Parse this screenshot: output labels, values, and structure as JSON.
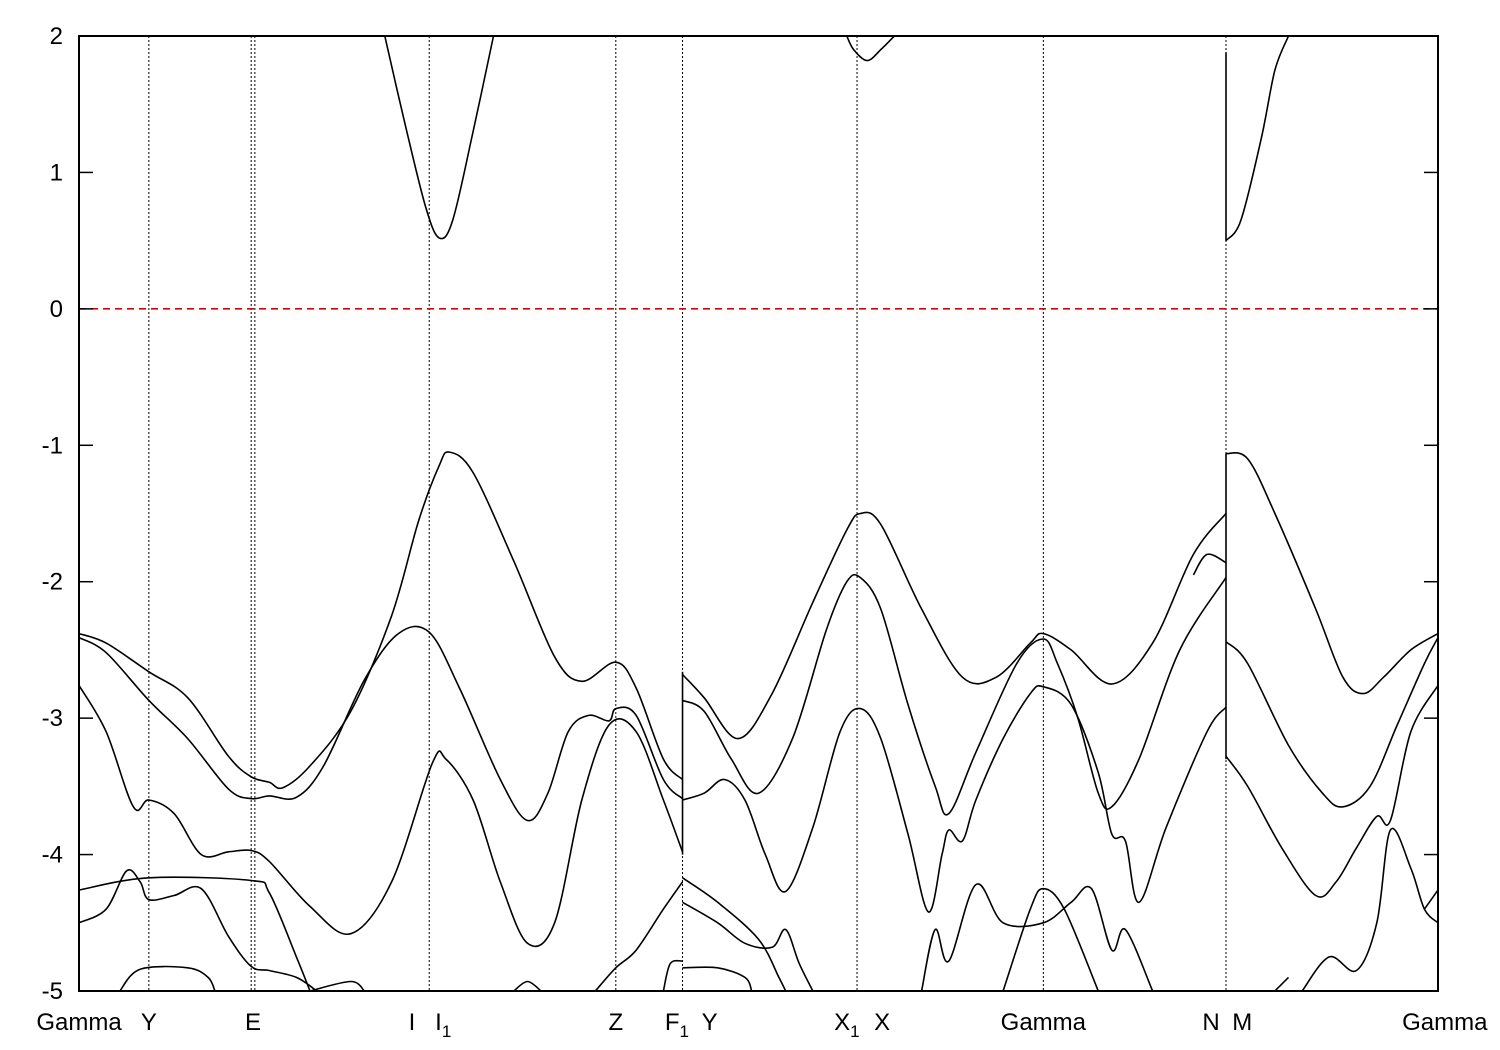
{
  "chart_data": {
    "type": "line",
    "title": "",
    "xlabel": "",
    "ylabel": "",
    "xlim": [
      0,
      1
    ],
    "ylim": [
      -5,
      2
    ],
    "yticks": [
      -5,
      -4,
      -3,
      -2,
      -1,
      0,
      1,
      2
    ],
    "grid": false,
    "legend": "none",
    "colors": {
      "bands": "#000000",
      "fermi_level": "#e00000"
    },
    "fermi_level": 0,
    "high_symmetry_lines": [
      0.0514,
      0.1267,
      0.1294,
      0.2577,
      0.395,
      0.4441,
      0.5725,
      0.7096,
      0.844
    ],
    "x_tick_labels": [
      {
        "x": 0.0,
        "main": "Gamma",
        "sub": ""
      },
      {
        "x": 0.0514,
        "main": "Y",
        "sub": ""
      },
      {
        "x": 0.128,
        "main": "E",
        "sub": ""
      },
      {
        "x": 0.245,
        "main": "I",
        "sub": ""
      },
      {
        "x": 0.268,
        "main": "I",
        "sub": "1"
      },
      {
        "x": 0.395,
        "main": "Z",
        "sub": ""
      },
      {
        "x": 0.44,
        "main": "F",
        "sub": "1"
      },
      {
        "x": 0.464,
        "main": "Y",
        "sub": ""
      },
      {
        "x": 0.565,
        "main": "X",
        "sub": "1"
      },
      {
        "x": 0.591,
        "main": "X",
        "sub": ""
      },
      {
        "x": 0.7096,
        "main": "Gamma",
        "sub": ""
      },
      {
        "x": 0.833,
        "main": "N",
        "sub": ""
      },
      {
        "x": 0.856,
        "main": "M",
        "sub": ""
      },
      {
        "x": 1.005,
        "main": "Gamma",
        "sub": ""
      }
    ],
    "series": [
      {
        "points": [
          [
            0,
            -2.38
          ],
          [
            0.02,
            -2.45
          ],
          [
            0.0514,
            -2.66
          ],
          [
            0.08,
            -2.85
          ],
          [
            0.11,
            -3.28
          ],
          [
            0.1267,
            -3.43
          ],
          [
            0.14,
            -3.47
          ],
          [
            0.15,
            -3.51
          ],
          [
            0.17,
            -3.35
          ],
          [
            0.2,
            -2.95
          ],
          [
            0.23,
            -2.25
          ],
          [
            0.25,
            -1.55
          ],
          [
            0.265,
            -1.15
          ],
          [
            0.2725,
            -1.05
          ],
          [
            0.29,
            -1.2
          ],
          [
            0.32,
            -1.85
          ],
          [
            0.35,
            -2.55
          ],
          [
            0.37,
            -2.73
          ],
          [
            0.395,
            -2.59
          ],
          [
            0.41,
            -2.78
          ],
          [
            0.43,
            -3.3
          ],
          [
            0.4441,
            -3.45
          ]
        ]
      },
      {
        "points": [
          [
            0,
            -2.41
          ],
          [
            0.02,
            -2.52
          ],
          [
            0.0514,
            -2.87
          ],
          [
            0.08,
            -3.15
          ],
          [
            0.11,
            -3.52
          ],
          [
            0.1267,
            -3.59
          ],
          [
            0.14,
            -3.57
          ],
          [
            0.16,
            -3.58
          ],
          [
            0.18,
            -3.35
          ],
          [
            0.21,
            -2.72
          ],
          [
            0.235,
            -2.38
          ],
          [
            0.2577,
            -2.37
          ],
          [
            0.28,
            -2.78
          ],
          [
            0.31,
            -3.45
          ],
          [
            0.33,
            -3.75
          ],
          [
            0.345,
            -3.55
          ],
          [
            0.36,
            -3.1
          ],
          [
            0.375,
            -2.98
          ],
          [
            0.39,
            -3.02
          ],
          [
            0.395,
            -2.93
          ],
          [
            0.41,
            -2.98
          ],
          [
            0.43,
            -3.45
          ],
          [
            0.4441,
            -3.59
          ]
        ]
      },
      {
        "points": [
          [
            0,
            -2.76
          ],
          [
            0.02,
            -3.1
          ],
          [
            0.04,
            -3.65
          ],
          [
            0.0514,
            -3.6
          ],
          [
            0.07,
            -3.7
          ],
          [
            0.09,
            -4.0
          ],
          [
            0.11,
            -3.98
          ],
          [
            0.1267,
            -3.97
          ],
          [
            0.14,
            -4.05
          ],
          [
            0.17,
            -4.38
          ],
          [
            0.2,
            -4.58
          ],
          [
            0.23,
            -4.2
          ],
          [
            0.26,
            -3.33
          ],
          [
            0.27,
            -3.3
          ],
          [
            0.29,
            -3.6
          ],
          [
            0.31,
            -4.2
          ],
          [
            0.33,
            -4.65
          ],
          [
            0.35,
            -4.5
          ],
          [
            0.37,
            -3.6
          ],
          [
            0.39,
            -3.05
          ],
          [
            0.41,
            -3.1
          ],
          [
            0.43,
            -3.6
          ],
          [
            0.4441,
            -3.98
          ]
        ]
      },
      {
        "points": [
          [
            0,
            -4.5
          ],
          [
            0.02,
            -4.4
          ],
          [
            0.035,
            -4.12
          ],
          [
            0.045,
            -4.2
          ],
          [
            0.0514,
            -4.33
          ],
          [
            0.07,
            -4.3
          ],
          [
            0.09,
            -4.25
          ],
          [
            0.11,
            -4.6
          ],
          [
            0.1267,
            -4.82
          ],
          [
            0.14,
            -4.85
          ],
          [
            0.16,
            -4.9
          ],
          [
            0.175,
            -5.0
          ]
        ]
      },
      {
        "points": [
          [
            0,
            -4.26
          ],
          [
            0.0514,
            -4.17
          ],
          [
            0.1267,
            -4.19
          ],
          [
            0.14,
            -4.28
          ],
          [
            0.16,
            -4.75
          ],
          [
            0.17,
            -5.0
          ]
        ]
      },
      {
        "points": [
          [
            0.03,
            -5.0
          ],
          [
            0.045,
            -4.84
          ],
          [
            0.08,
            -4.83
          ],
          [
            0.095,
            -4.9
          ],
          [
            0.1,
            -5.0
          ]
        ]
      },
      {
        "points": [
          [
            0.17,
            -5.0
          ],
          [
            0.2,
            -4.93
          ],
          [
            0.21,
            -5.0
          ]
        ]
      },
      {
        "points": [
          [
            0.32,
            -5.0
          ],
          [
            0.33,
            -4.93
          ],
          [
            0.34,
            -5.0
          ]
        ]
      },
      {
        "points": [
          [
            0.38,
            -5.0
          ],
          [
            0.395,
            -4.83
          ],
          [
            0.41,
            -4.7
          ],
          [
            0.43,
            -4.4
          ],
          [
            0.4441,
            -4.2
          ]
        ]
      },
      {
        "points": [
          [
            0.43,
            -5.0
          ],
          [
            0.435,
            -4.8
          ],
          [
            0.4441,
            -4.78
          ]
        ]
      },
      {
        "points": [
          [
            0.4441,
            -2.68
          ],
          [
            0.46,
            -2.85
          ],
          [
            0.485,
            -3.15
          ],
          [
            0.51,
            -2.82
          ],
          [
            0.54,
            -2.15
          ],
          [
            0.565,
            -1.62
          ],
          [
            0.575,
            -1.5
          ],
          [
            0.59,
            -1.58
          ],
          [
            0.62,
            -2.2
          ],
          [
            0.65,
            -2.7
          ],
          [
            0.675,
            -2.7
          ],
          [
            0.7,
            -2.45
          ],
          [
            0.7096,
            -2.38
          ],
          [
            0.73,
            -2.5
          ],
          [
            0.76,
            -2.75
          ],
          [
            0.79,
            -2.45
          ],
          [
            0.82,
            -1.8
          ],
          [
            0.844,
            -1.5
          ]
        ]
      },
      {
        "points": [
          [
            0.4441,
            -2.87
          ],
          [
            0.46,
            -2.95
          ],
          [
            0.48,
            -3.3
          ],
          [
            0.5,
            -3.55
          ],
          [
            0.525,
            -3.15
          ],
          [
            0.55,
            -2.35
          ],
          [
            0.565,
            -2.0
          ],
          [
            0.575,
            -1.97
          ],
          [
            0.59,
            -2.2
          ],
          [
            0.61,
            -2.9
          ],
          [
            0.63,
            -3.5
          ],
          [
            0.64,
            -3.7
          ],
          [
            0.66,
            -3.25
          ],
          [
            0.69,
            -2.6
          ],
          [
            0.7096,
            -2.42
          ],
          [
            0.72,
            -2.6
          ],
          [
            0.735,
            -3.0
          ],
          [
            0.75,
            -3.55
          ],
          [
            0.76,
            -3.65
          ],
          [
            0.78,
            -3.3
          ],
          [
            0.81,
            -2.5
          ],
          [
            0.844,
            -1.97
          ]
        ]
      },
      {
        "points": [
          [
            0.4441,
            -3.6
          ],
          [
            0.46,
            -3.55
          ],
          [
            0.475,
            -3.45
          ],
          [
            0.49,
            -3.6
          ],
          [
            0.505,
            -4.0
          ],
          [
            0.52,
            -4.27
          ],
          [
            0.54,
            -3.8
          ],
          [
            0.56,
            -3.1
          ],
          [
            0.575,
            -2.93
          ],
          [
            0.59,
            -3.15
          ],
          [
            0.61,
            -3.85
          ],
          [
            0.625,
            -4.42
          ],
          [
            0.635,
            -4.0
          ],
          [
            0.64,
            -3.82
          ],
          [
            0.65,
            -3.9
          ],
          [
            0.66,
            -3.6
          ],
          [
            0.68,
            -3.15
          ],
          [
            0.7,
            -2.82
          ],
          [
            0.7096,
            -2.77
          ],
          [
            0.73,
            -2.9
          ],
          [
            0.75,
            -3.4
          ],
          [
            0.76,
            -3.85
          ],
          [
            0.77,
            -3.9
          ],
          [
            0.78,
            -4.35
          ],
          [
            0.8,
            -3.8
          ],
          [
            0.83,
            -3.1
          ],
          [
            0.844,
            -2.92
          ]
        ]
      },
      {
        "points": [
          [
            0.4441,
            -4.17
          ],
          [
            0.47,
            -4.35
          ],
          [
            0.5,
            -4.62
          ],
          [
            0.515,
            -4.9
          ],
          [
            0.52,
            -5.0
          ]
        ]
      },
      {
        "points": [
          [
            0.4441,
            -4.35
          ],
          [
            0.47,
            -4.5
          ],
          [
            0.49,
            -4.65
          ],
          [
            0.51,
            -4.68
          ],
          [
            0.52,
            -4.55
          ],
          [
            0.53,
            -4.8
          ],
          [
            0.54,
            -5.0
          ]
        ]
      },
      {
        "points": [
          [
            0.4441,
            -4.83
          ],
          [
            0.47,
            -4.83
          ],
          [
            0.49,
            -4.9
          ],
          [
            0.495,
            -5.0
          ]
        ]
      },
      {
        "points": [
          [
            0.62,
            -5.0
          ],
          [
            0.63,
            -4.55
          ],
          [
            0.64,
            -4.78
          ],
          [
            0.66,
            -4.22
          ],
          [
            0.68,
            -4.5
          ],
          [
            0.7096,
            -4.5
          ],
          [
            0.73,
            -4.35
          ],
          [
            0.745,
            -4.25
          ],
          [
            0.76,
            -4.7
          ],
          [
            0.77,
            -4.55
          ],
          [
            0.79,
            -5.0
          ]
        ]
      },
      {
        "points": [
          [
            0.68,
            -5.0
          ],
          [
            0.7,
            -4.4
          ],
          [
            0.7096,
            -4.25
          ],
          [
            0.725,
            -4.4
          ],
          [
            0.75,
            -5.0
          ]
        ]
      },
      {
        "points": [
          [
            0.844,
            -1.86
          ],
          [
            0.83,
            -1.8
          ],
          [
            0.82,
            -1.95
          ]
        ]
      },
      {
        "points": [
          [
            0.844,
            -1.06
          ],
          [
            0.86,
            -1.1
          ],
          [
            0.88,
            -1.5
          ],
          [
            0.91,
            -2.2
          ],
          [
            0.93,
            -2.7
          ],
          [
            0.945,
            -2.82
          ],
          [
            0.96,
            -2.7
          ],
          [
            0.98,
            -2.5
          ],
          [
            1.0,
            -2.38
          ]
        ]
      },
      {
        "points": [
          [
            0.844,
            -2.44
          ],
          [
            0.86,
            -2.6
          ],
          [
            0.89,
            -3.2
          ],
          [
            0.915,
            -3.55
          ],
          [
            0.93,
            -3.65
          ],
          [
            0.95,
            -3.5
          ],
          [
            0.97,
            -3.05
          ],
          [
            0.99,
            -2.6
          ],
          [
            1.0,
            -2.41
          ]
        ]
      },
      {
        "points": [
          [
            0.844,
            -3.28
          ],
          [
            0.86,
            -3.5
          ],
          [
            0.885,
            -3.95
          ],
          [
            0.91,
            -4.3
          ],
          [
            0.925,
            -4.2
          ],
          [
            0.94,
            -3.95
          ],
          [
            0.955,
            -3.72
          ],
          [
            0.965,
            -3.75
          ],
          [
            0.98,
            -3.1
          ],
          [
            1.0,
            -2.76
          ]
        ]
      },
      {
        "points": [
          [
            0.9,
            -5.0
          ],
          [
            0.92,
            -4.75
          ],
          [
            0.94,
            -4.85
          ],
          [
            0.955,
            -4.5
          ],
          [
            0.965,
            -3.82
          ],
          [
            0.98,
            -4.1
          ],
          [
            0.99,
            -4.4
          ],
          [
            1.0,
            -4.5
          ]
        ]
      },
      {
        "points": [
          [
            0.99,
            -4.4
          ],
          [
            1.0,
            -4.26
          ]
        ]
      },
      {
        "points": [
          [
            0.88,
            -5.0
          ],
          [
            0.89,
            -4.9
          ]
        ]
      },
      {
        "points": [
          [
            0.225,
            2.0
          ],
          [
            0.24,
            1.35
          ],
          [
            0.255,
            0.75
          ],
          [
            0.265,
            0.52
          ],
          [
            0.275,
            0.65
          ],
          [
            0.29,
            1.3
          ],
          [
            0.305,
            2.0
          ]
        ]
      },
      {
        "points": [
          [
            0.565,
            2.0
          ],
          [
            0.57,
            1.9
          ],
          [
            0.58,
            1.82
          ],
          [
            0.59,
            1.9
          ],
          [
            0.6,
            2.0
          ]
        ]
      },
      {
        "points": [
          [
            0.844,
            0.5
          ],
          [
            0.855,
            0.65
          ],
          [
            0.87,
            1.25
          ],
          [
            0.88,
            1.75
          ],
          [
            0.89,
            2.0
          ]
        ]
      }
    ],
    "discontinuities": [
      {
        "x": 0.4441,
        "y_from": -4.0,
        "y_to": -2.66
      },
      {
        "x": 0.844,
        "y_from": -3.3,
        "y_to": -1.06
      },
      {
        "x": 0.844,
        "y_from": 0.5,
        "y_to": 1.88
      }
    ]
  }
}
